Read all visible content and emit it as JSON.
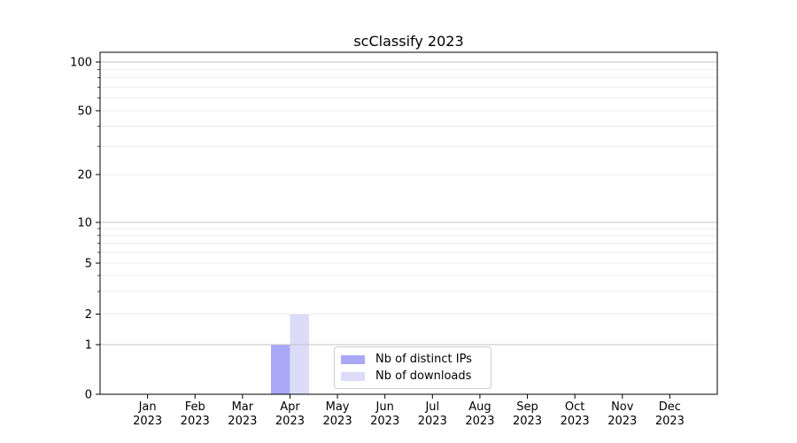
{
  "chart_data": {
    "type": "bar",
    "title": "scClassify 2023",
    "categories": [
      "Jan 2023",
      "Feb 2023",
      "Mar 2023",
      "Apr 2023",
      "May 2023",
      "Jun 2023",
      "Jul 2023",
      "Aug 2023",
      "Sep 2023",
      "Oct 2023",
      "Nov 2023",
      "Dec 2023"
    ],
    "x_tick_labels": [
      [
        "Jan",
        "2023"
      ],
      [
        "Feb",
        "2023"
      ],
      [
        "Mar",
        "2023"
      ],
      [
        "Apr",
        "2023"
      ],
      [
        "May",
        "2023"
      ],
      [
        "Jun",
        "2023"
      ],
      [
        "Jul",
        "2023"
      ],
      [
        "Aug",
        "2023"
      ],
      [
        "Sep",
        "2023"
      ],
      [
        "Oct",
        "2023"
      ],
      [
        "Nov",
        "2023"
      ],
      [
        "Dec",
        "2023"
      ]
    ],
    "series": [
      {
        "name": "Nb of distinct IPs",
        "color": "#a9a9f7",
        "values": [
          0,
          0,
          0,
          1,
          0,
          0,
          0,
          0,
          0,
          0,
          0,
          0
        ]
      },
      {
        "name": "Nb of downloads",
        "color": "#dcdcf8",
        "values": [
          0,
          0,
          0,
          2,
          0,
          0,
          0,
          0,
          0,
          0,
          0,
          0
        ]
      }
    ],
    "xlabel": "",
    "ylabel": "",
    "yscale": "symlog",
    "yticks": [
      0,
      1,
      2,
      5,
      10,
      20,
      50,
      100
    ],
    "y_minor_ticks": [
      3,
      4,
      6,
      7,
      8,
      9,
      30,
      40,
      60,
      70,
      80,
      90
    ],
    "ylim": [
      0,
      112
    ],
    "grid": true,
    "legend": {
      "position": "lower center",
      "entries": [
        "Nb of distinct IPs",
        "Nb of downloads"
      ]
    }
  },
  "colors": {
    "background": "#ffffff",
    "axis": "#000000",
    "text": "#000000",
    "major_grid": "#c3c3c3",
    "minor_grid": "#ececec"
  }
}
